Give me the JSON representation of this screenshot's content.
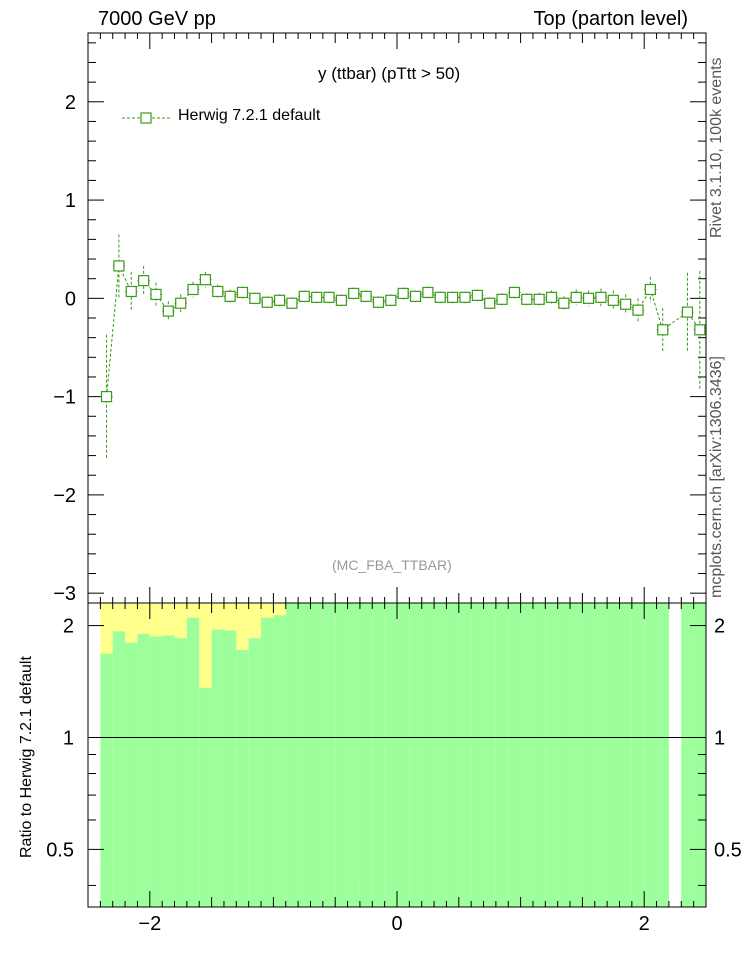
{
  "header": {
    "left": "7000 GeV pp",
    "right": "Top (parton level)"
  },
  "side_labels": {
    "rivet": "Rivet 3.1.10,  100k events",
    "mcplots": "mcplots.cern.ch [arXiv:1306.3436]"
  },
  "plot_title": "y (ttbar) (pTtt > 50)",
  "analysis_tag": "(MC_FBA_TTBAR)",
  "ratio_ylabel": "Ratio to Herwig 7.2.1 default",
  "legend": {
    "label": "Herwig 7.2.1 default"
  },
  "colors": {
    "series": "#3a9a1a",
    "band_inner": "#9cff9c",
    "band_outer": "#ffff8c",
    "axis": "#000000"
  },
  "chart_data": {
    "type": "scatter",
    "x_range": [
      -2.5,
      2.5
    ],
    "main_ylim": [
      -3.1,
      2.7
    ],
    "ratio_ylim": [
      0.35,
      2.3
    ],
    "x_ticks": [
      -2,
      0,
      2
    ],
    "main_y_ticks": [
      -3,
      -2,
      -1,
      0,
      1,
      2
    ],
    "ratio_y_ticks": [
      0.5,
      1,
      2
    ],
    "ratio_scale": "log",
    "series": [
      {
        "name": "Herwig 7.2.1 default",
        "bin_width": 0.1,
        "x": [
          -2.35,
          -2.25,
          -2.15,
          -2.05,
          -1.95,
          -1.85,
          -1.75,
          -1.65,
          -1.55,
          -1.45,
          -1.35,
          -1.25,
          -1.15,
          -1.05,
          -0.95,
          -0.85,
          -0.75,
          -0.65,
          -0.55,
          -0.45,
          -0.35,
          -0.25,
          -0.15,
          -0.05,
          0.05,
          0.15,
          0.25,
          0.35,
          0.45,
          0.55,
          0.65,
          0.75,
          0.85,
          0.95,
          1.05,
          1.15,
          1.25,
          1.35,
          1.45,
          1.55,
          1.65,
          1.75,
          1.85,
          1.95,
          2.05,
          2.15,
          2.35,
          2.45
        ],
        "y": [
          -1.0,
          0.33,
          0.07,
          0.18,
          0.04,
          -0.13,
          -0.05,
          0.09,
          0.19,
          0.07,
          0.02,
          0.06,
          0.0,
          -0.04,
          -0.02,
          -0.05,
          0.02,
          0.01,
          0.01,
          -0.02,
          0.05,
          0.02,
          -0.04,
          -0.02,
          0.05,
          0.02,
          0.06,
          0.01,
          0.01,
          0.01,
          0.03,
          -0.05,
          -0.01,
          0.06,
          -0.01,
          -0.01,
          0.01,
          -0.05,
          0.01,
          0.0,
          0.01,
          -0.02,
          -0.06,
          -0.12,
          0.09,
          -0.32,
          -0.14,
          -0.32
        ],
        "yerr": [
          0.63,
          0.32,
          0.2,
          0.15,
          0.12,
          0.1,
          0.09,
          0.08,
          0.08,
          0.07,
          0.07,
          0.06,
          0.06,
          0.06,
          0.06,
          0.06,
          0.06,
          0.06,
          0.06,
          0.06,
          0.06,
          0.06,
          0.06,
          0.06,
          0.06,
          0.06,
          0.06,
          0.06,
          0.06,
          0.06,
          0.06,
          0.06,
          0.06,
          0.06,
          0.06,
          0.07,
          0.07,
          0.07,
          0.08,
          0.08,
          0.09,
          0.1,
          0.1,
          0.12,
          0.13,
          0.22,
          0.4,
          0.6
        ]
      }
    ],
    "ratio_bands": {
      "x_lo": [
        -2.4,
        -2.3,
        -2.2,
        -2.1,
        -2.0,
        -1.9,
        -1.8,
        -1.7,
        -1.6,
        -1.5,
        -1.4,
        -1.3,
        -1.2,
        -1.1,
        -1.0,
        -0.9,
        -0.8,
        -0.7,
        -0.6,
        -0.5,
        -0.4,
        -0.3,
        -0.2,
        -0.1,
        0.0,
        0.1,
        0.2,
        0.3,
        0.4,
        0.5,
        0.6,
        0.7,
        0.8,
        0.9,
        1.0,
        1.1,
        1.2,
        1.3,
        1.4,
        1.5,
        1.6,
        1.7,
        1.8,
        1.9,
        2.0,
        2.1,
        2.3,
        2.4
      ],
      "x_hi": [
        -2.3,
        -2.2,
        -2.1,
        -2.0,
        -1.9,
        -1.8,
        -1.7,
        -1.6,
        -1.5,
        -1.4,
        -1.3,
        -1.2,
        -1.1,
        -1.0,
        -0.9,
        -0.8,
        -0.7,
        -0.6,
        -0.5,
        -0.4,
        -0.3,
        -0.2,
        -0.1,
        0.0,
        0.1,
        0.2,
        0.3,
        0.4,
        0.5,
        0.6,
        0.7,
        0.8,
        0.9,
        1.0,
        1.1,
        1.2,
        1.3,
        1.4,
        1.5,
        1.6,
        1.7,
        1.8,
        1.9,
        2.0,
        2.1,
        2.2,
        2.4,
        2.5
      ],
      "inner_lo": [
        0.0,
        0.0,
        0.0,
        0.0,
        0.0,
        0.0,
        0.0,
        0.0,
        0.0,
        0.0,
        0.0,
        0.0,
        0.0,
        0.0,
        0.0,
        0.0,
        0.0,
        0.0,
        0.0,
        0.0,
        0.0,
        0.0,
        0.0,
        0.0,
        0.0,
        0.0,
        0.0,
        0.0,
        0.0,
        0.0,
        0.0,
        0.0,
        0.0,
        0.0,
        0.0,
        0.0,
        0.0,
        0.0,
        0.0,
        0.0,
        0.0,
        0.0,
        0.0,
        0.0,
        0.0,
        0.0,
        0.0,
        0.0
      ],
      "inner_hi": [
        1.68,
        1.93,
        1.8,
        1.9,
        1.87,
        1.88,
        1.85,
        2.1,
        1.36,
        1.95,
        1.94,
        1.72,
        1.85,
        2.1,
        2.13,
        2.6,
        2.6,
        2.6,
        2.6,
        2.6,
        2.6,
        2.6,
        2.6,
        2.6,
        2.6,
        2.6,
        2.6,
        2.6,
        2.6,
        2.6,
        2.6,
        2.6,
        2.6,
        2.6,
        2.6,
        2.6,
        2.6,
        2.6,
        2.6,
        2.6,
        2.6,
        2.6,
        2.6,
        2.6,
        2.6,
        2.6,
        2.6,
        2.6
      ],
      "outer_lo": [
        0.0,
        0.0,
        0.0,
        0.0,
        0.0,
        0.0,
        0.0,
        0.0,
        0.74,
        0.0,
        0.0,
        0.0,
        0.0,
        0.0,
        0.0,
        0.0,
        0.0,
        0.0,
        0.0,
        0.0,
        0.42,
        0.0,
        0.39,
        0.0,
        0.47,
        0.0,
        0.63,
        0.0,
        0.0,
        0.0,
        0.0,
        0.42,
        0.0,
        0.39,
        0.0,
        0.0,
        0.0,
        0.0,
        0.0,
        0.0,
        0.0,
        0.0,
        0.0,
        0.0,
        0.0,
        0.0,
        0.0,
        0.0
      ],
      "outer_hi": [
        2.6,
        2.6,
        2.6,
        2.6,
        2.6,
        2.6,
        2.6,
        2.6,
        2.6,
        2.6,
        2.6,
        2.6,
        2.6,
        2.6,
        2.6,
        2.6,
        2.6,
        2.6,
        2.6,
        2.6,
        2.6,
        2.6,
        2.6,
        2.6,
        2.6,
        2.6,
        2.6,
        2.6,
        2.6,
        2.6,
        2.6,
        2.6,
        2.6,
        2.6,
        2.6,
        2.6,
        2.6,
        2.6,
        2.6,
        2.6,
        2.6,
        2.6,
        2.6,
        2.6,
        2.6,
        2.6,
        2.6,
        2.6
      ]
    }
  }
}
